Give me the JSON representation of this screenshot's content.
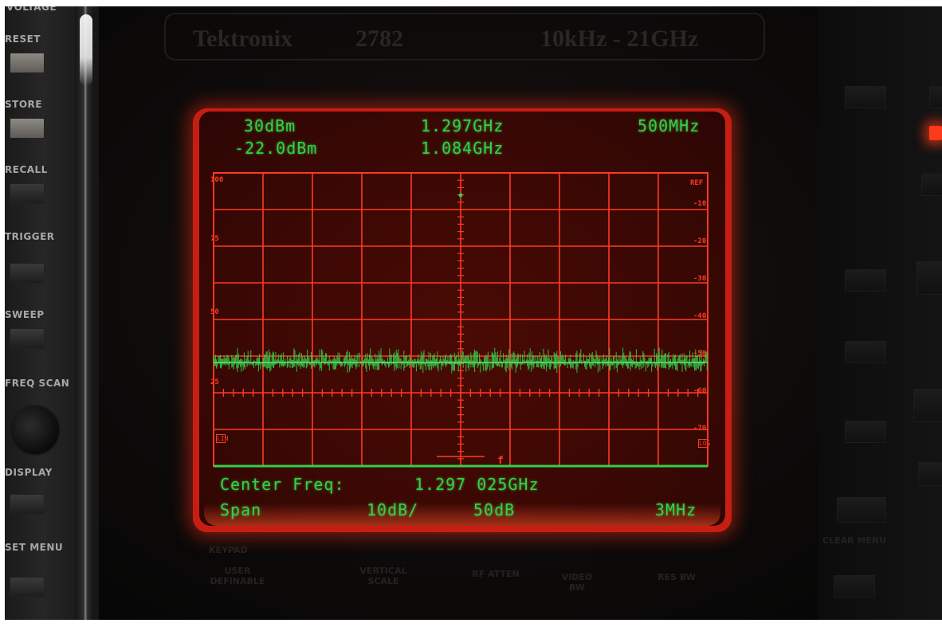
{
  "left_panel": {
    "labels": [
      "RESET",
      "STORE",
      "RECALL",
      "TRIGGER",
      "SWEEP",
      "FREQ SCAN",
      "DISPLAY",
      "SET MENU"
    ]
  },
  "branding": {
    "name": "Tektronix",
    "model": "2782",
    "range": "10kHz - 21GHz"
  },
  "screen": {
    "top_left_1": "30dBm",
    "top_left_2": "-22.0dBm",
    "top_center_1": "1.297GHz",
    "top_center_2": "1.084GHz",
    "top_right": "500MHz",
    "bottom_line_1_label": "Center Freq:",
    "bottom_line_1_value": "1.297 025GHz",
    "bottom_line_2_left": "Span",
    "bottom_line_2_scale": "10dB/",
    "bottom_line_2_range": "50dB",
    "bottom_line_2_right": "3MHz",
    "grid_left_labels": [
      "100",
      "75",
      "50",
      "25"
    ],
    "grid_right_labels": [
      "REF",
      "-10",
      "-20",
      "-30",
      "-40",
      "-50",
      "-60",
      "-70"
    ],
    "side_tag_left": "LIN",
    "side_tag_right": "LOG",
    "marker_label": "f"
  },
  "below_labels": {
    "keypad": "KEYPAD",
    "user_definable": "USER DEFINABLE",
    "vertical_scale": "VERTICAL SCALE",
    "rf_atten": "RF ATTEN",
    "video_bw": "VIDEO BW",
    "res_bw": "RES BW",
    "clear_menu": "CLEAR MENU"
  },
  "colors": {
    "phosphor": "#32d04a",
    "graticule": "#ff3a22",
    "bezel": "#c61e12"
  }
}
